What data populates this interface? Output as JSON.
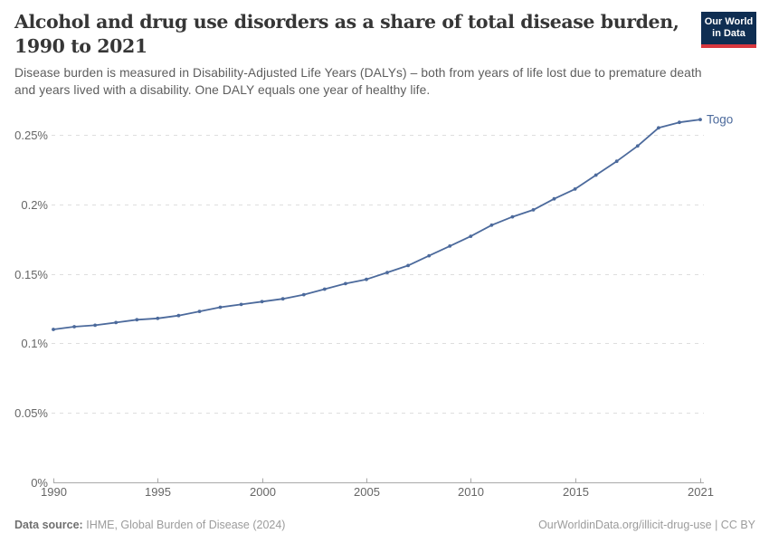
{
  "brand": {
    "logo_line1": "Our World",
    "logo_line2": "in Data",
    "logo_bg_color": "#0F2E52",
    "logo_accent_color": "#D8383F"
  },
  "header": {
    "title": "Alcohol and drug use disorders as a share of total disease burden, 1990 to 2021",
    "title_lines": [
      "Alcohol and drug use disorders as a share of total disease burden,",
      "1990 to 2021"
    ],
    "subtitle_lines": [
      "Disease burden is measured in Disability-Adjusted Life Years (DALYs) – both from years of life lost due to premature death",
      "and years lived with a disability. One DALY equals one year of healthy life."
    ]
  },
  "chart_data": {
    "type": "line",
    "title": "Alcohol and drug use disorders as a share of total disease burden, 1990 to 2021",
    "xlabel": "",
    "ylabel": "",
    "unit": "%",
    "x_range": [
      1990,
      2021
    ],
    "ylim": [
      0,
      0.27
    ],
    "grid": "horizontal-dashed",
    "legend": "end-of-line-label",
    "x_ticks": [
      {
        "x": 1990,
        "label": "1990"
      },
      {
        "x": 1995,
        "label": "1995"
      },
      {
        "x": 2000,
        "label": "2000"
      },
      {
        "x": 2005,
        "label": "2005"
      },
      {
        "x": 2010,
        "label": "2010"
      },
      {
        "x": 2015,
        "label": "2015"
      },
      {
        "x": 2021,
        "label": "2021"
      }
    ],
    "y_ticks": [
      {
        "y": 0,
        "label": "0%"
      },
      {
        "y": 0.05,
        "label": "0.05%"
      },
      {
        "y": 0.1,
        "label": "0.1%"
      },
      {
        "y": 0.15,
        "label": "0.15%"
      },
      {
        "y": 0.2,
        "label": "0.2%"
      },
      {
        "y": 0.25,
        "label": "0.25%"
      }
    ],
    "series": [
      {
        "name": "Togo",
        "color": "#4C6A9C",
        "x": [
          1990,
          1991,
          1992,
          1993,
          1994,
          1995,
          1996,
          1997,
          1998,
          1999,
          2000,
          2001,
          2002,
          2003,
          2004,
          2005,
          2006,
          2007,
          2008,
          2009,
          2010,
          2011,
          2012,
          2013,
          2014,
          2015,
          2016,
          2017,
          2018,
          2019,
          2020,
          2021
        ],
        "y": [
          0.11,
          0.112,
          0.113,
          0.115,
          0.117,
          0.118,
          0.12,
          0.123,
          0.126,
          0.128,
          0.13,
          0.132,
          0.135,
          0.139,
          0.143,
          0.146,
          0.151,
          0.156,
          0.163,
          0.17,
          0.177,
          0.185,
          0.191,
          0.196,
          0.204,
          0.211,
          0.221,
          0.231,
          0.242,
          0.255,
          0.259,
          0.261
        ]
      }
    ]
  },
  "footer": {
    "source_label": "Data source:",
    "source_value": "IHME, Global Burden of Disease (2024)",
    "link": "OurWorldinData.org/illicit-drug-use",
    "separator": " | ",
    "license": "CC BY"
  }
}
